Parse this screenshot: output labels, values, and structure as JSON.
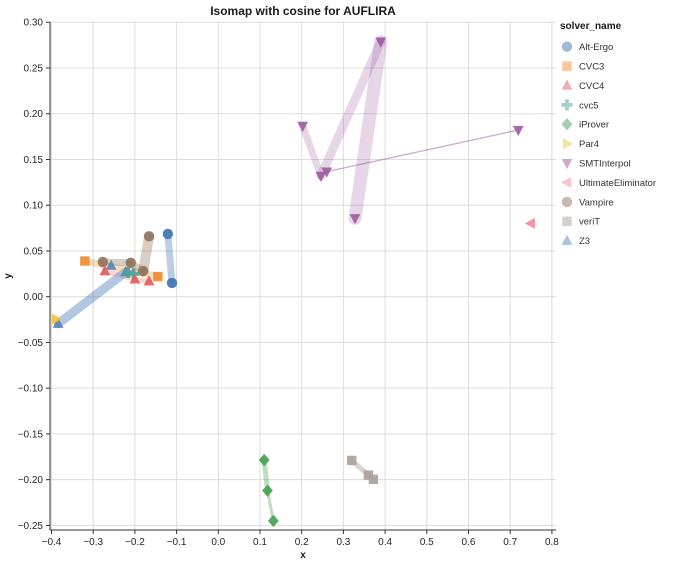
{
  "chart_data": {
    "type": "scatter",
    "title": "Isomap with cosine for AUFLIRA",
    "xlabel": "x",
    "ylabel": "y",
    "legend_title": "solver_name",
    "legend_position": "right",
    "grid": true,
    "grid_color": "#dcdcdc",
    "axis_color": "#333333",
    "background": "#ffffff",
    "xlim": [
      -0.44,
      0.81
    ],
    "ylim": [
      -0.257,
      0.301
    ],
    "x_ticks": [
      -0.4,
      -0.3,
      -0.2,
      -0.1,
      0.0,
      0.1,
      0.2,
      0.3,
      0.4,
      0.5,
      0.6,
      0.7,
      0.8
    ],
    "y_ticks": [
      0.3,
      0.25,
      0.2,
      0.15,
      0.1,
      0.05,
      0.0,
      -0.05,
      -0.1,
      -0.15,
      -0.2,
      -0.25
    ],
    "series": [
      {
        "name": "Alt-Ergo",
        "marker": "circle",
        "color": "#3f74ae",
        "points": [
          [
            -0.121,
            0.0686
          ],
          [
            -0.111,
            0.015
          ]
        ],
        "segments": [
          {
            "from": 0,
            "to": 1,
            "width": 7,
            "opacity": 0.35
          }
        ]
      },
      {
        "name": "CVC3",
        "marker": "square",
        "color": "#ef8b2f",
        "points": [
          [
            -0.32,
            0.039
          ],
          [
            -0.145,
            0.022
          ]
        ],
        "segments": [
          {
            "from": 0,
            "to": 1,
            "width": 7,
            "opacity": 0.3
          }
        ]
      },
      {
        "name": "CVC4",
        "marker": "triangle-up",
        "color": "#e05c5c",
        "points": [
          [
            -0.272,
            0.028
          ],
          [
            -0.2,
            0.019
          ],
          [
            -0.166,
            0.017
          ]
        ],
        "segments": [
          {
            "from": 0,
            "to": 1,
            "width": 5,
            "opacity": 0.25
          },
          {
            "from": 1,
            "to": 2,
            "width": 5,
            "opacity": 0.25
          }
        ]
      },
      {
        "name": "cvc5",
        "marker": "cross",
        "color": "#4ba29a",
        "points": [
          [
            -0.216,
            0.0265
          ],
          [
            -0.203,
            0.025
          ]
        ],
        "segments": []
      },
      {
        "name": "iProver",
        "marker": "diamond",
        "color": "#44a04f",
        "points": [
          [
            0.11,
            -0.1785
          ],
          [
            0.118,
            -0.212
          ],
          [
            0.132,
            -0.245
          ]
        ],
        "segments": [
          {
            "from": 0,
            "to": 1,
            "width": 5,
            "opacity": 0.35
          },
          {
            "from": 1,
            "to": 2,
            "width": 3,
            "opacity": 0.35
          }
        ]
      },
      {
        "name": "Par4",
        "marker": "triangle-right",
        "color": "#eec33c",
        "points": [
          [
            -0.389,
            -0.0244
          ]
        ],
        "segments": []
      },
      {
        "name": "SMTInterpol",
        "marker": "triangle-down",
        "color": "#9c5b9e",
        "points": [
          [
            0.2024,
            0.1866
          ],
          [
            0.246,
            0.132
          ],
          [
            0.26,
            0.1366
          ],
          [
            0.3895,
            0.2787
          ],
          [
            0.3278,
            0.0857
          ],
          [
            0.7194,
            0.1822
          ]
        ],
        "segments": [
          {
            "from": 0,
            "to": 1,
            "width": 7,
            "opacity": 0.25
          },
          {
            "from": 1,
            "to": 3,
            "width": 9,
            "opacity": 0.25
          },
          {
            "from": 3,
            "to": 4,
            "width": 13,
            "opacity": 0.25
          },
          {
            "from": 2,
            "to": 5,
            "width": 1.4,
            "opacity": 0.5
          }
        ]
      },
      {
        "name": "UltimateEliminator",
        "marker": "triangle-left",
        "color": "#f2899e",
        "points": [
          [
            0.7492,
            0.0802
          ]
        ],
        "segments": []
      },
      {
        "name": "Vampire",
        "marker": "circle",
        "color": "#90735c",
        "points": [
          [
            -0.277,
            0.038
          ],
          [
            -0.21,
            0.037
          ],
          [
            -0.18,
            0.028
          ],
          [
            -0.166,
            0.066
          ]
        ],
        "segments": [
          {
            "from": 0,
            "to": 1,
            "width": 7,
            "opacity": 0.35
          },
          {
            "from": 1,
            "to": 2,
            "width": 7,
            "opacity": 0.35
          },
          {
            "from": 2,
            "to": 3,
            "width": 10,
            "opacity": 0.35
          }
        ]
      },
      {
        "name": "veriT",
        "marker": "square",
        "color": "#aca19b",
        "points": [
          [
            0.32,
            -0.179
          ],
          [
            0.36,
            -0.195
          ],
          [
            0.372,
            -0.1996
          ]
        ],
        "segments": [
          {
            "from": 0,
            "to": 1,
            "width": 5,
            "opacity": 0.45
          },
          {
            "from": 1,
            "to": 2,
            "width": 5,
            "opacity": 0.45
          }
        ]
      },
      {
        "name": "Z3",
        "marker": "triangle-up",
        "color": "#5585bd",
        "points": [
          [
            -0.384,
            -0.0295
          ],
          [
            -0.257,
            0.034
          ],
          [
            -0.222,
            0.027
          ]
        ],
        "segments": [
          {
            "from": 0,
            "to": 2,
            "width": 9,
            "opacity": 0.45
          }
        ]
      }
    ]
  }
}
